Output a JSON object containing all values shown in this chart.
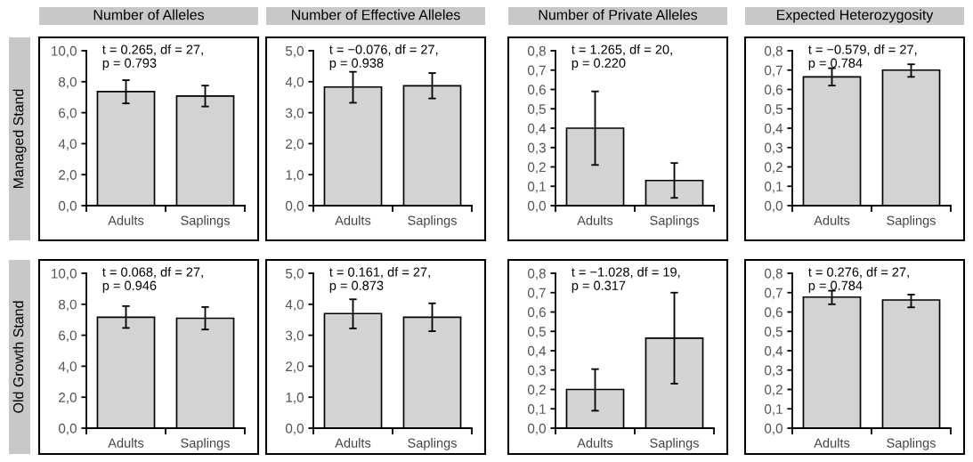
{
  "chart_data": [
    {
      "type": "bar",
      "title": "Number of Alleles",
      "ylabel": "Managed Stand",
      "categories": [
        "Adults",
        "Saplings"
      ],
      "values": [
        7.36,
        7.08
      ],
      "errors": [
        [
          6.6,
          8.1
        ],
        [
          6.4,
          7.75
        ]
      ],
      "color": "#d3d3d3",
      "ylim": [
        0,
        10
      ],
      "yticks": [
        {
          "value": 0,
          "label": "0,0"
        },
        {
          "value": 2,
          "label": "2,0"
        },
        {
          "value": 4,
          "label": "4,0"
        },
        {
          "value": 6,
          "label": "6,0"
        },
        {
          "value": 8,
          "label": "8,0"
        },
        {
          "value": 10,
          "label": "10,0"
        }
      ],
      "annotations": [
        "t = 0.265, df = 27,\np = 0.793"
      ]
    },
    {
      "type": "bar",
      "title": "Number of Effective Alleles",
      "categories": [
        "Adults",
        "Saplings"
      ],
      "values": [
        3.83,
        3.87
      ],
      "errors": [
        [
          3.32,
          4.32
        ],
        [
          3.46,
          4.28
        ]
      ],
      "color": "#d3d3d3",
      "ylim": [
        0,
        5
      ],
      "yticks": [
        {
          "value": 0,
          "label": "0,0"
        },
        {
          "value": 1,
          "label": "1,0"
        },
        {
          "value": 2,
          "label": "2,0"
        },
        {
          "value": 3,
          "label": "3,0"
        },
        {
          "value": 4,
          "label": "4,0"
        },
        {
          "value": 5,
          "label": "5,0"
        }
      ],
      "annotations": [
        "t = −0.076, df = 27,\np = 0.938"
      ]
    },
    {
      "type": "bar",
      "title": "Number of Private Alleles",
      "categories": [
        "Adults",
        "Saplings"
      ],
      "values": [
        0.4,
        0.13
      ],
      "errors": [
        [
          0.21,
          0.59
        ],
        [
          0.04,
          0.22
        ]
      ],
      "color": "#d3d3d3",
      "ylim": [
        0,
        0.8
      ],
      "yticks": [
        {
          "value": 0,
          "label": "0,0"
        },
        {
          "value": 0.1,
          "label": "0,1"
        },
        {
          "value": 0.2,
          "label": "0,2"
        },
        {
          "value": 0.3,
          "label": "0,3"
        },
        {
          "value": 0.4,
          "label": "0,4"
        },
        {
          "value": 0.5,
          "label": "0,5"
        },
        {
          "value": 0.6,
          "label": "0,6"
        },
        {
          "value": 0.7,
          "label": "0,7"
        },
        {
          "value": 0.8,
          "label": "0,8"
        }
      ],
      "annotations": [
        "t = 1.265, df = 20,\np = 0.220"
      ]
    },
    {
      "type": "bar",
      "title": "Expected Heterozygosity",
      "categories": [
        "Adults",
        "Saplings"
      ],
      "values": [
        0.665,
        0.7
      ],
      "errors": [
        [
          0.62,
          0.71
        ],
        [
          0.665,
          0.73
        ]
      ],
      "color": "#d3d3d3",
      "ylim": [
        0,
        0.8
      ],
      "yticks": [
        {
          "value": 0,
          "label": "0,0"
        },
        {
          "value": 0.1,
          "label": "0,1"
        },
        {
          "value": 0.2,
          "label": "0,2"
        },
        {
          "value": 0.3,
          "label": "0,3"
        },
        {
          "value": 0.4,
          "label": "0,4"
        },
        {
          "value": 0.5,
          "label": "0,5"
        },
        {
          "value": 0.6,
          "label": "0,6"
        },
        {
          "value": 0.7,
          "label": "0,7"
        },
        {
          "value": 0.8,
          "label": "0,8"
        }
      ],
      "annotations": [
        "t = −0.579, df = 27,\np = 0.784"
      ]
    },
    {
      "type": "bar",
      "ylabel": "Old Growth Stand",
      "categories": [
        "Adults",
        "Saplings"
      ],
      "values": [
        7.16,
        7.1
      ],
      "errors": [
        [
          6.47,
          7.88
        ],
        [
          6.37,
          7.82
        ]
      ],
      "color": "#d3d3d3",
      "ylim": [
        0,
        10
      ],
      "yticks": [
        {
          "value": 0,
          "label": "0,0"
        },
        {
          "value": 2,
          "label": "2,0"
        },
        {
          "value": 4,
          "label": "4,0"
        },
        {
          "value": 6,
          "label": "6,0"
        },
        {
          "value": 8,
          "label": "8,0"
        },
        {
          "value": 10,
          "label": "10,0"
        }
      ],
      "annotations": [
        "t = 0.068, df = 27,\np = 0.946"
      ]
    },
    {
      "type": "bar",
      "categories": [
        "Adults",
        "Saplings"
      ],
      "values": [
        3.7,
        3.58
      ],
      "errors": [
        [
          3.22,
          4.16
        ],
        [
          3.13,
          4.03
        ]
      ],
      "color": "#d3d3d3",
      "ylim": [
        0,
        5
      ],
      "yticks": [
        {
          "value": 0,
          "label": "0,0"
        },
        {
          "value": 1,
          "label": "1,0"
        },
        {
          "value": 2,
          "label": "2,0"
        },
        {
          "value": 3,
          "label": "3,0"
        },
        {
          "value": 4,
          "label": "4,0"
        },
        {
          "value": 5,
          "label": "5,0"
        }
      ],
      "annotations": [
        "t = 0.161, df = 27,\np = 0.873"
      ]
    },
    {
      "type": "bar",
      "categories": [
        "Adults",
        "Saplings"
      ],
      "values": [
        0.2,
        0.465
      ],
      "errors": [
        [
          0.09,
          0.305
        ],
        [
          0.23,
          0.7
        ]
      ],
      "color": "#d3d3d3",
      "ylim": [
        0,
        0.8
      ],
      "yticks": [
        {
          "value": 0,
          "label": "0,0"
        },
        {
          "value": 0.1,
          "label": "0,1"
        },
        {
          "value": 0.2,
          "label": "0,2"
        },
        {
          "value": 0.3,
          "label": "0,3"
        },
        {
          "value": 0.4,
          "label": "0,4"
        },
        {
          "value": 0.5,
          "label": "0,5"
        },
        {
          "value": 0.6,
          "label": "0,6"
        },
        {
          "value": 0.7,
          "label": "0,7"
        },
        {
          "value": 0.8,
          "label": "0,8"
        }
      ],
      "annotations": [
        "t = −1.028, df = 19,\np = 0.317"
      ]
    },
    {
      "type": "bar",
      "categories": [
        "Adults",
        "Saplings"
      ],
      "values": [
        0.677,
        0.662
      ],
      "errors": [
        [
          0.64,
          0.71
        ],
        [
          0.624,
          0.69
        ]
      ],
      "color": "#d3d3d3",
      "ylim": [
        0,
        0.8
      ],
      "yticks": [
        {
          "value": 0,
          "label": "0,0"
        },
        {
          "value": 0.1,
          "label": "0,1"
        },
        {
          "value": 0.2,
          "label": "0,2"
        },
        {
          "value": 0.3,
          "label": "0,3"
        },
        {
          "value": 0.4,
          "label": "0,4"
        },
        {
          "value": 0.5,
          "label": "0,5"
        },
        {
          "value": 0.6,
          "label": "0,6"
        },
        {
          "value": 0.7,
          "label": "0,7"
        },
        {
          "value": 0.8,
          "label": "0,8"
        }
      ],
      "annotations": [
        "t = 0.276, df = 27,\np = 0.784"
      ]
    }
  ]
}
